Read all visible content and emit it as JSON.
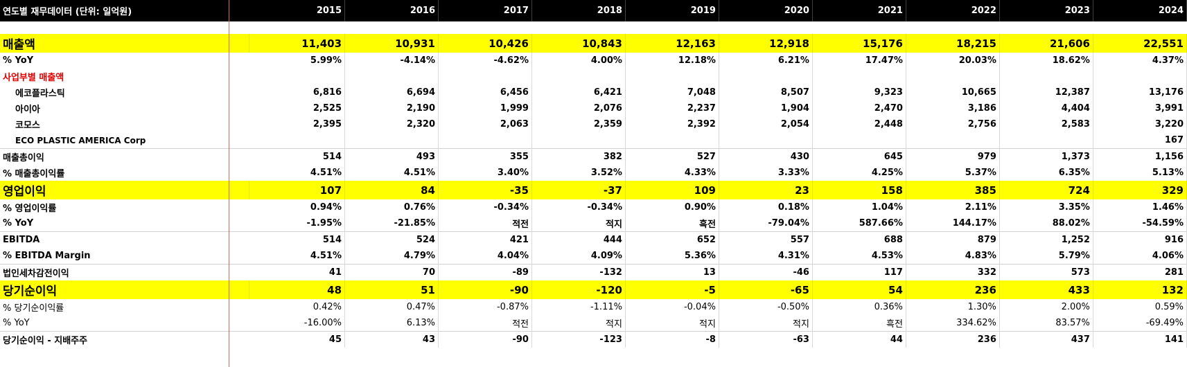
{
  "header": {
    "title": "연도별 재무데이터 (단위: 일억원)",
    "years": [
      "2015",
      "2016",
      "2017",
      "2018",
      "2019",
      "2020",
      "2021",
      "2022",
      "2023",
      "2024"
    ]
  },
  "rows": [
    {
      "label": "매출액",
      "values": [
        "11,403",
        "10,931",
        "10,426",
        "10,843",
        "12,163",
        "12,918",
        "15,176",
        "18,215",
        "21,606",
        "22,551"
      ]
    },
    {
      "label": "% YoY",
      "values": [
        "5.99%",
        "-4.14%",
        "-4.62%",
        "4.00%",
        "12.18%",
        "6.21%",
        "17.47%",
        "20.03%",
        "18.62%",
        "4.37%"
      ]
    },
    {
      "label": "사업부별 매출액",
      "values": [
        "",
        "",
        "",
        "",
        "",
        "",
        "",
        "",
        "",
        ""
      ]
    },
    {
      "label": "에코플라스틱",
      "values": [
        "6,816",
        "6,694",
        "6,456",
        "6,421",
        "7,048",
        "8,507",
        "9,323",
        "10,665",
        "12,387",
        "13,176"
      ]
    },
    {
      "label": "아이아",
      "values": [
        "2,525",
        "2,190",
        "1,999",
        "2,076",
        "2,237",
        "1,904",
        "2,470",
        "3,186",
        "4,404",
        "3,991"
      ]
    },
    {
      "label": "코모스",
      "values": [
        "2,395",
        "2,320",
        "2,063",
        "2,359",
        "2,392",
        "2,054",
        "2,448",
        "2,756",
        "2,583",
        "3,220"
      ]
    },
    {
      "label": "ECO PLASTIC AMERICA Corp",
      "values": [
        "",
        "",
        "",
        "",
        "",
        "",
        "",
        "",
        "",
        "167"
      ]
    },
    {
      "label": "매출총이익",
      "values": [
        "514",
        "493",
        "355",
        "382",
        "527",
        "430",
        "645",
        "979",
        "1,373",
        "1,156"
      ]
    },
    {
      "label": "% 매출총이익률",
      "values": [
        "4.51%",
        "4.51%",
        "3.40%",
        "3.52%",
        "4.33%",
        "3.33%",
        "4.25%",
        "5.37%",
        "6.35%",
        "5.13%"
      ]
    },
    {
      "label": "영업이익",
      "values": [
        "107",
        "84",
        "-35",
        "-37",
        "109",
        "23",
        "158",
        "385",
        "724",
        "329"
      ]
    },
    {
      "label": "% 영업이익률",
      "values": [
        "0.94%",
        "0.76%",
        "-0.34%",
        "-0.34%",
        "0.90%",
        "0.18%",
        "1.04%",
        "2.11%",
        "3.35%",
        "1.46%"
      ]
    },
    {
      "label": "% YoY",
      "values": [
        "-1.95%",
        "-21.85%",
        "적전",
        "적지",
        "흑전",
        "-79.04%",
        "587.66%",
        "144.17%",
        "88.02%",
        "-54.59%"
      ]
    },
    {
      "label": "EBITDA",
      "values": [
        "514",
        "524",
        "421",
        "444",
        "652",
        "557",
        "688",
        "879",
        "1,252",
        "916"
      ]
    },
    {
      "label": "% EBITDA Margin",
      "values": [
        "4.51%",
        "4.79%",
        "4.04%",
        "4.09%",
        "5.36%",
        "4.31%",
        "4.53%",
        "4.83%",
        "5.79%",
        "4.06%"
      ]
    },
    {
      "label": "법인세차감전이익",
      "values": [
        "41",
        "70",
        "-89",
        "-132",
        "13",
        "-46",
        "117",
        "332",
        "573",
        "281"
      ]
    },
    {
      "label": "당기순이익",
      "values": [
        "48",
        "51",
        "-90",
        "-120",
        "-5",
        "-65",
        "54",
        "236",
        "433",
        "132"
      ]
    },
    {
      "label": "% 당기순이익률",
      "values": [
        "0.42%",
        "0.47%",
        "-0.87%",
        "-1.11%",
        "-0.04%",
        "-0.50%",
        "0.36%",
        "1.30%",
        "2.00%",
        "0.59%"
      ]
    },
    {
      "label": "% YoY",
      "values": [
        "-16.00%",
        "6.13%",
        "적전",
        "적지",
        "적지",
        "적지",
        "흑전",
        "334.62%",
        "83.57%",
        "-69.49%"
      ]
    },
    {
      "label": "당기순이익 - 지배주주",
      "values": [
        "45",
        "43",
        "-90",
        "-123",
        "-8",
        "-63",
        "44",
        "236",
        "437",
        "141"
      ]
    }
  ]
}
